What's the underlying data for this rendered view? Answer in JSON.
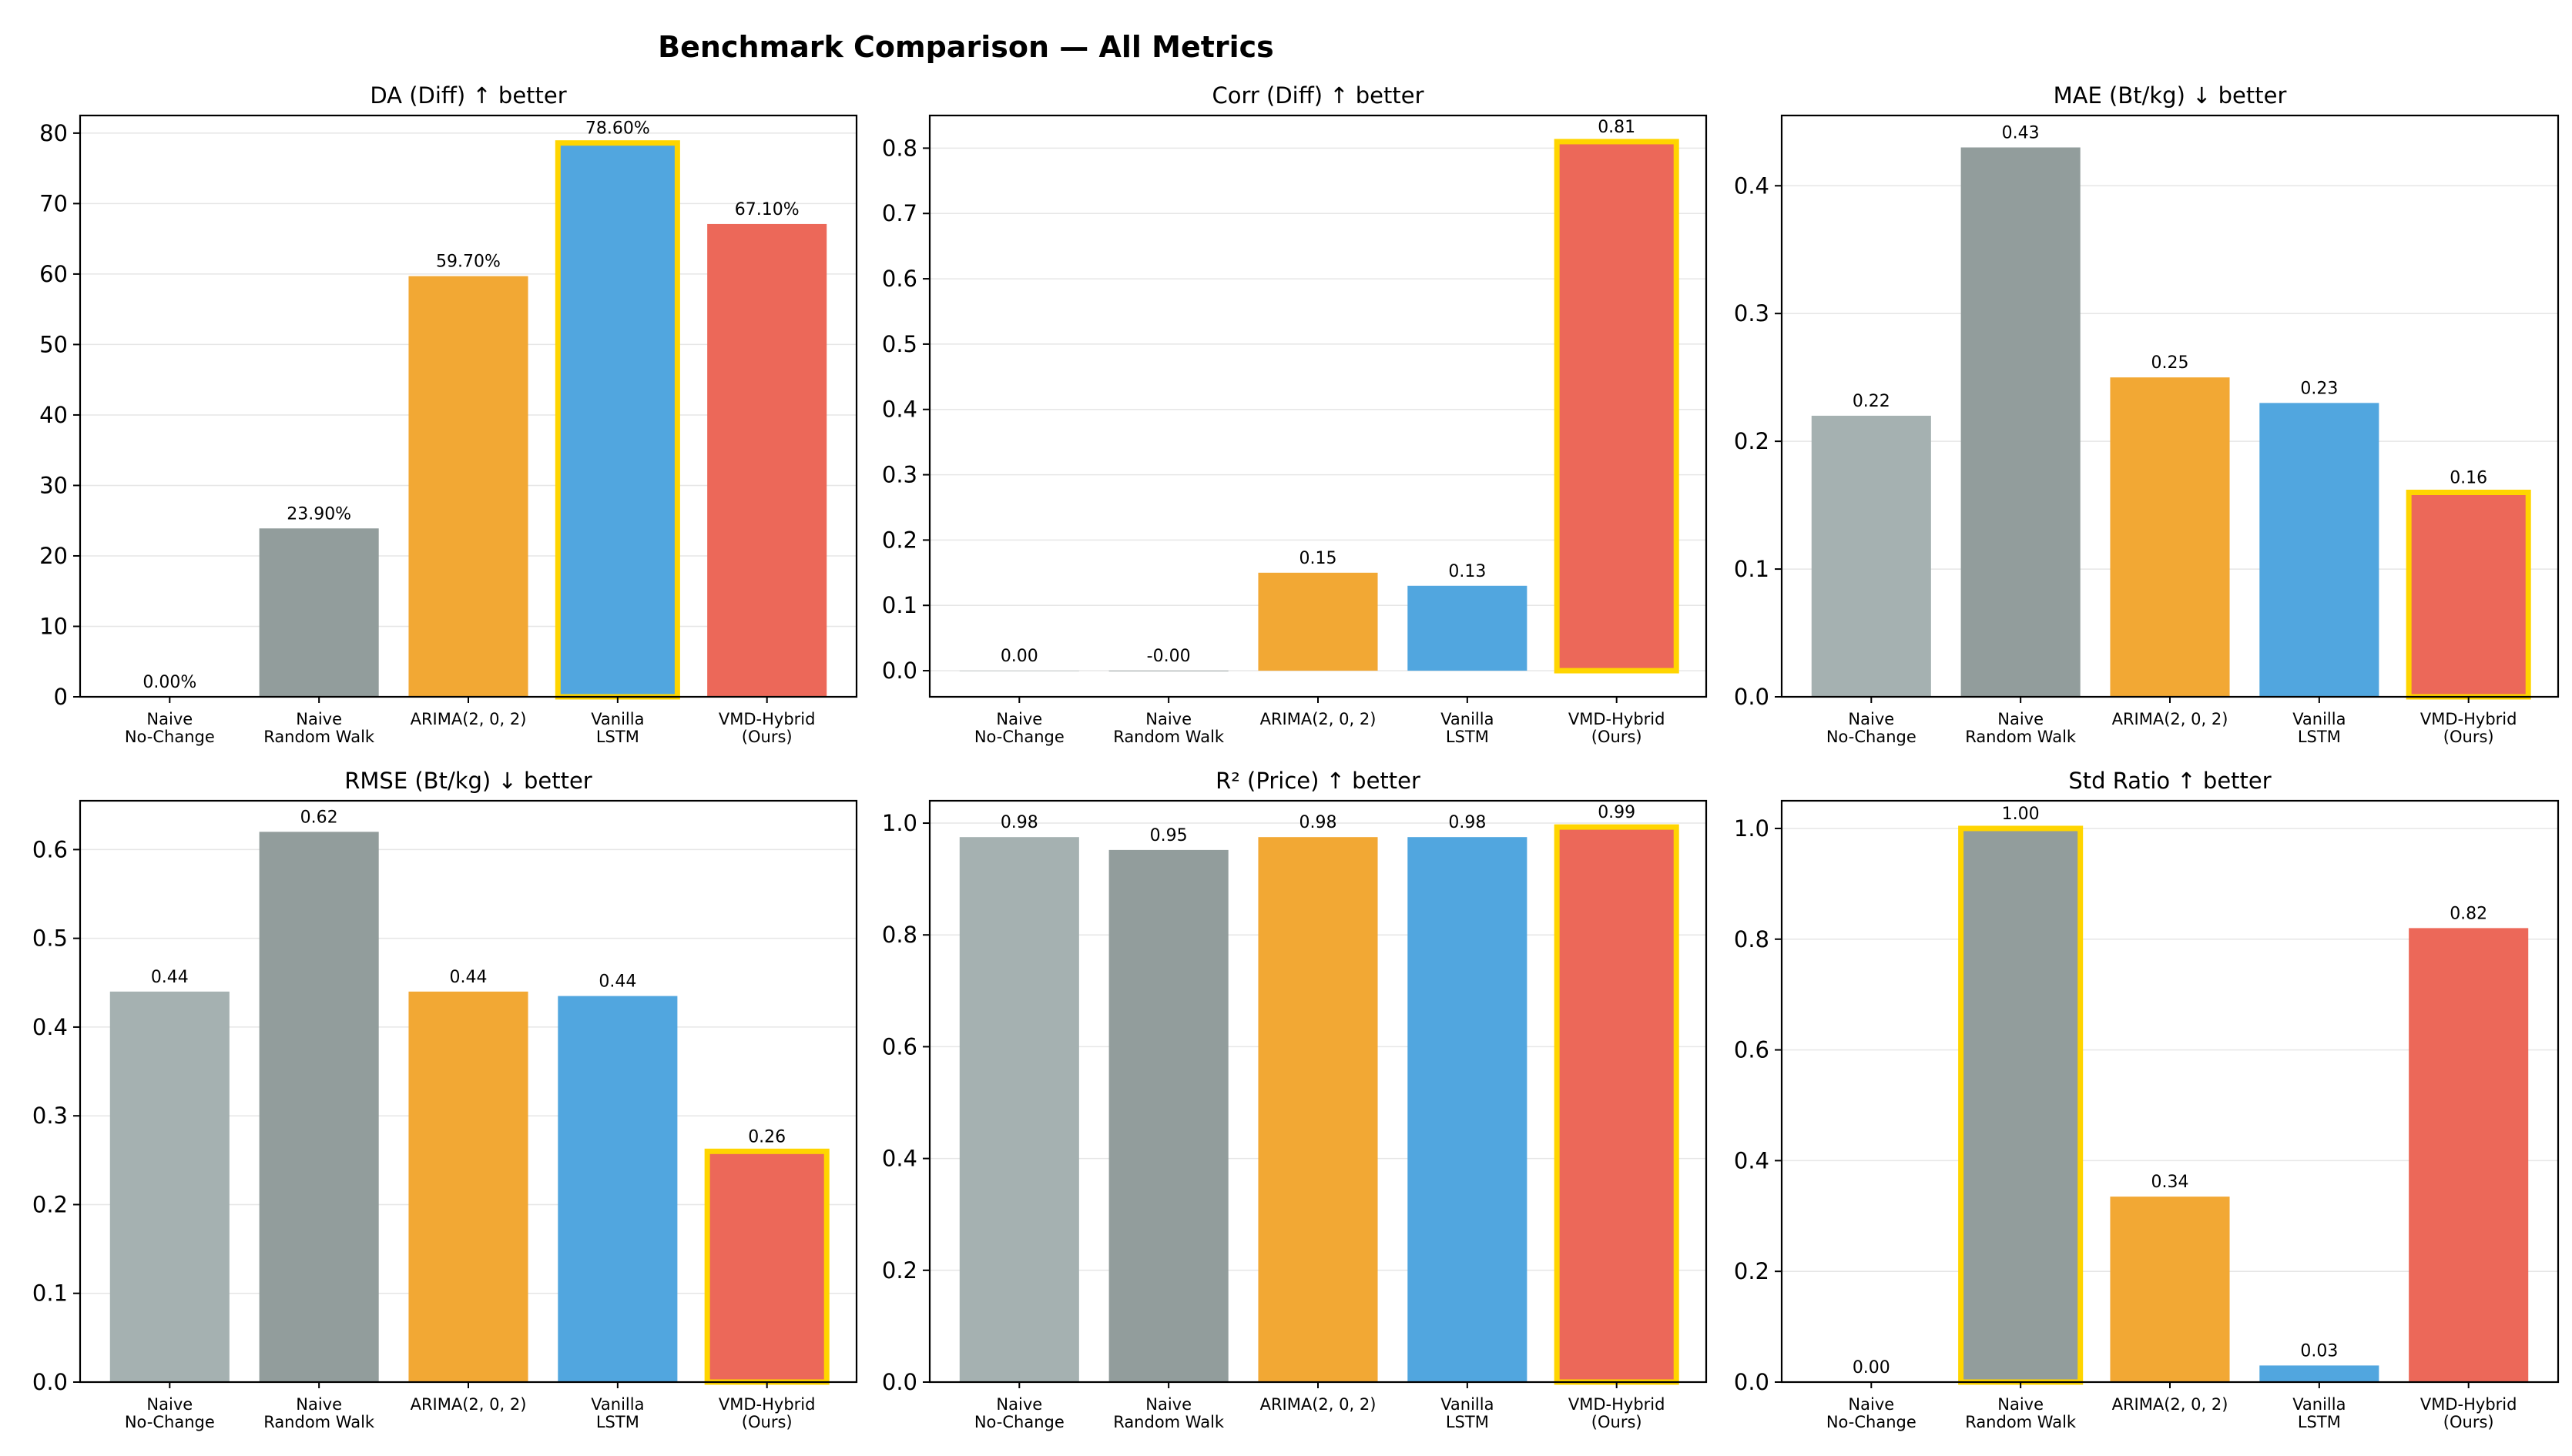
{
  "title": "Benchmark Comparison — All Metrics",
  "colors": {
    "Naive No-Change": "#a5b1b1",
    "Naive Random Walk": "#929d9c",
    "ARIMA(2, 0, 2)": "#f2a834",
    "Vanilla LSTM": "#51a6df",
    "VMD-Hybrid (Ours)": "#ec6859",
    "highlight": "#ffd500"
  },
  "chart_data": [
    {
      "type": "bar",
      "title": "DA (Diff) ↑ better",
      "categories": [
        "Naive\nNo-Change",
        "Naive\nRandom Walk",
        "ARIMA(2, 0, 2)",
        "Vanilla\nLSTM",
        "VMD-Hybrid\n(Ours)"
      ],
      "values": [
        0.0,
        23.9,
        59.7,
        78.6,
        67.1
      ],
      "labels": [
        "0.00%",
        "23.90%",
        "59.70%",
        "78.60%",
        "67.10%"
      ],
      "ylim": [
        0,
        82.5
      ],
      "yticks": [
        0,
        10,
        20,
        30,
        40,
        50,
        60,
        70,
        80
      ],
      "best_index": 3,
      "grid": true
    },
    {
      "type": "bar",
      "title": "Corr (Diff) ↑ better",
      "categories": [
        "Naive\nNo-Change",
        "Naive\nRandom Walk",
        "ARIMA(2, 0, 2)",
        "Vanilla\nLSTM",
        "VMD-Hybrid\n(Ours)"
      ],
      "values": [
        0.0,
        -0.001,
        0.15,
        0.13,
        0.81
      ],
      "labels": [
        "0.00",
        "-0.00",
        "0.15",
        "0.13",
        "0.81"
      ],
      "ylim": [
        -0.04,
        0.85
      ],
      "yticks": [
        0.0,
        0.1,
        0.2,
        0.3,
        0.4,
        0.5,
        0.6,
        0.7,
        0.8
      ],
      "best_index": 4,
      "grid": true
    },
    {
      "type": "bar",
      "title": "MAE (Bt/kg) ↓ better",
      "categories": [
        "Naive\nNo-Change",
        "Naive\nRandom Walk",
        "ARIMA(2, 0, 2)",
        "Vanilla\nLSTM",
        "VMD-Hybrid\n(Ours)"
      ],
      "values": [
        0.22,
        0.43,
        0.25,
        0.23,
        0.16
      ],
      "labels": [
        "0.22",
        "0.43",
        "0.25",
        "0.23",
        "0.16"
      ],
      "ylim": [
        0,
        0.455
      ],
      "yticks": [
        0.0,
        0.1,
        0.2,
        0.3,
        0.4
      ],
      "best_index": 4,
      "grid": true
    },
    {
      "type": "bar",
      "title": "RMSE (Bt/kg) ↓ better",
      "categories": [
        "Naive\nNo-Change",
        "Naive\nRandom Walk",
        "ARIMA(2, 0, 2)",
        "Vanilla\nLSTM",
        "VMD-Hybrid\n(Ours)"
      ],
      "values": [
        0.44,
        0.62,
        0.44,
        0.435,
        0.26
      ],
      "labels": [
        "0.44",
        "0.62",
        "0.44",
        "0.44",
        "0.26"
      ],
      "ylim": [
        0,
        0.655
      ],
      "yticks": [
        0.0,
        0.1,
        0.2,
        0.3,
        0.4,
        0.5,
        0.6
      ],
      "best_index": 4,
      "grid": true
    },
    {
      "type": "bar",
      "title": "R² (Price) ↑ better",
      "categories": [
        "Naive\nNo-Change",
        "Naive\nRandom Walk",
        "ARIMA(2, 0, 2)",
        "Vanilla\nLSTM",
        "VMD-Hybrid\n(Ours)"
      ],
      "values": [
        0.975,
        0.952,
        0.975,
        0.975,
        0.993
      ],
      "labels": [
        "0.98",
        "0.95",
        "0.98",
        "0.98",
        "0.99"
      ],
      "ylim": [
        0,
        1.04
      ],
      "yticks": [
        0.0,
        0.2,
        0.4,
        0.6,
        0.8,
        1.0
      ],
      "best_index": 4,
      "grid": true
    },
    {
      "type": "bar",
      "title": "Std Ratio ↑ better",
      "categories": [
        "Naive\nNo-Change",
        "Naive\nRandom Walk",
        "ARIMA(2, 0, 2)",
        "Vanilla\nLSTM",
        "VMD-Hybrid\n(Ours)"
      ],
      "values": [
        0.0,
        1.0,
        0.335,
        0.03,
        0.82
      ],
      "labels": [
        "0.00",
        "1.00",
        "0.34",
        "0.03",
        "0.82"
      ],
      "ylim": [
        0,
        1.05
      ],
      "yticks": [
        0.0,
        0.2,
        0.4,
        0.6,
        0.8,
        1.0
      ],
      "best_index": 1,
      "grid": true
    }
  ]
}
